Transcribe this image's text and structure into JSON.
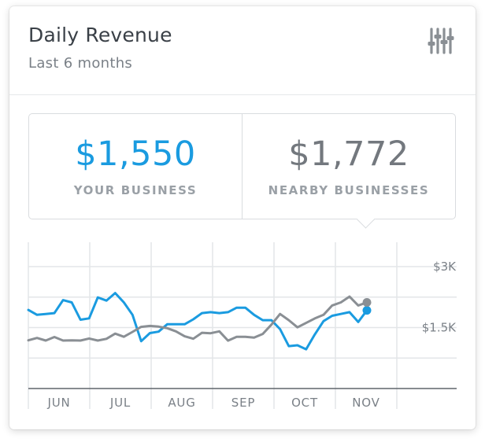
{
  "header": {
    "title": "Daily Revenue",
    "subtitle": "Last 6 months",
    "settings_icon": "sliders-icon"
  },
  "stats": {
    "yours": {
      "value": "$1,550",
      "label": "YOUR BUSINESS",
      "color": "#1a9be0"
    },
    "nearby": {
      "value": "$1,772",
      "label": "NEARBY BUSINESSES",
      "color": "#73787e"
    }
  },
  "chart_data": {
    "type": "line",
    "x_labels": [
      "JUN",
      "JUL",
      "AUG",
      "SEP",
      "OCT",
      "NOV"
    ],
    "y_ticks": [
      {
        "value": 3000,
        "label": "$3K"
      },
      {
        "value": 1500,
        "label": "$1.5K"
      }
    ],
    "ylim": [
      0,
      3600
    ],
    "grid": true,
    "series": [
      {
        "color": "#1a9be0",
        "values": [
          1934,
          1813,
          1835,
          1857,
          2175,
          2120,
          1693,
          1726,
          2241,
          2164,
          2350,
          2120,
          1813,
          1165,
          1364,
          1400,
          1582,
          1582,
          1582,
          1703,
          1857,
          1879,
          1857,
          1879,
          1989,
          1989,
          1813,
          1681,
          1681,
          1461,
          1043,
          1065,
          966,
          1329,
          1659,
          1791,
          1835,
          1879,
          1637,
          1923
        ],
        "final_value": 1923
      },
      {
        "color": "#8a8f94",
        "values": [
          1187,
          1245,
          1181,
          1267,
          1181,
          1187,
          1180,
          1231,
          1180,
          1224,
          1351,
          1274,
          1394,
          1517,
          1541,
          1524,
          1484,
          1407,
          1286,
          1225,
          1373,
          1361,
          1407,
          1178,
          1273,
          1273,
          1253,
          1343,
          1571,
          1835,
          1681,
          1505,
          1615,
          1725,
          1813,
          2043,
          2120,
          2263,
          2043,
          2120
        ],
        "final_value": 2120
      }
    ]
  }
}
